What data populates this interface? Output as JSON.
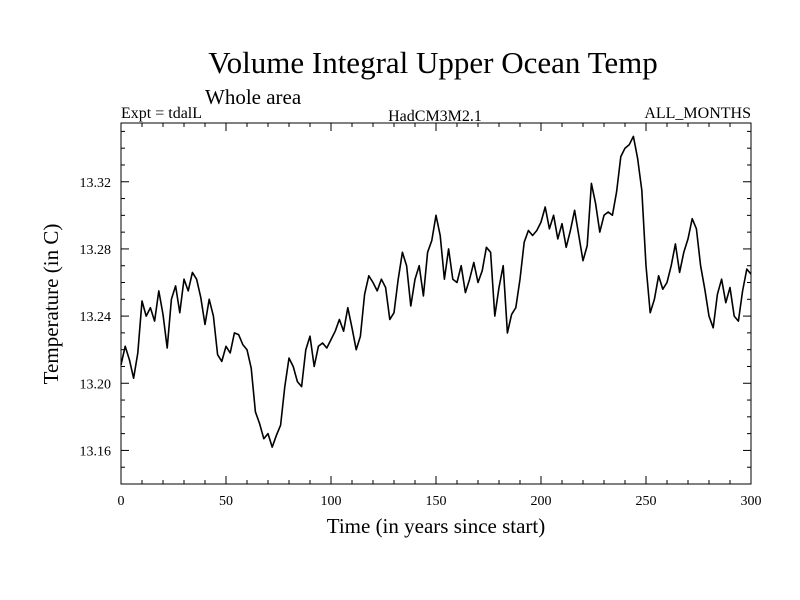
{
  "chart_data": {
    "type": "line",
    "title": "Volume Integral Upper Ocean Temp",
    "subtitle": "Whole area",
    "annotations": {
      "left": "Expt = tdalL",
      "center": "HadCM3M2.1",
      "right": "ALL_MONTHS"
    },
    "xlabel": "Time (in years since start)",
    "ylabel": "Temperature (in C)",
    "xlim": [
      0,
      300
    ],
    "ylim": [
      13.14,
      13.355
    ],
    "xticks": [
      0,
      50,
      100,
      150,
      200,
      250,
      300
    ],
    "xtick_labels": [
      "0",
      "50",
      "100",
      "150",
      "200",
      "250",
      "300"
    ],
    "yticks": [
      13.16,
      13.2,
      13.24,
      13.28,
      13.32
    ],
    "ytick_labels": [
      "13.16",
      "13.20",
      "13.24",
      "13.28",
      "13.32"
    ],
    "grid": false,
    "series": [
      {
        "name": "Volume Integral Upper Ocean Temp",
        "color": "#000000",
        "x": [
          0,
          2,
          4,
          6,
          8,
          10,
          12,
          14,
          16,
          18,
          20,
          22,
          24,
          26,
          28,
          30,
          32,
          34,
          36,
          38,
          40,
          42,
          44,
          46,
          48,
          50,
          52,
          54,
          56,
          58,
          60,
          62,
          64,
          66,
          68,
          70,
          72,
          74,
          76,
          78,
          80,
          82,
          84,
          86,
          88,
          90,
          92,
          94,
          96,
          98,
          100,
          102,
          104,
          106,
          108,
          110,
          112,
          114,
          116,
          118,
          120,
          122,
          124,
          126,
          128,
          130,
          132,
          134,
          136,
          138,
          140,
          142,
          144,
          146,
          148,
          150,
          152,
          154,
          156,
          158,
          160,
          162,
          164,
          166,
          168,
          170,
          172,
          174,
          176,
          178,
          180,
          182,
          184,
          186,
          188,
          190,
          192,
          194,
          196,
          198,
          200,
          202,
          204,
          206,
          208,
          210,
          212,
          214,
          216,
          218,
          220,
          222,
          224,
          226,
          228,
          230,
          232,
          234,
          236,
          238,
          240,
          242,
          244,
          246,
          248,
          250,
          252,
          254,
          256,
          258,
          260,
          262,
          264,
          266,
          268,
          270,
          272,
          274,
          276,
          278,
          280,
          282,
          284,
          286,
          288,
          290,
          292,
          294,
          296,
          298,
          300
        ],
        "values": [
          13.211,
          13.222,
          13.214,
          13.203,
          13.218,
          13.249,
          13.24,
          13.245,
          13.237,
          13.255,
          13.241,
          13.221,
          13.25,
          13.258,
          13.242,
          13.262,
          13.255,
          13.266,
          13.262,
          13.251,
          13.235,
          13.25,
          13.24,
          13.217,
          13.213,
          13.222,
          13.218,
          13.23,
          13.229,
          13.223,
          13.22,
          13.209,
          13.183,
          13.176,
          13.167,
          13.17,
          13.162,
          13.169,
          13.175,
          13.198,
          13.215,
          13.21,
          13.201,
          13.198,
          13.22,
          13.228,
          13.21,
          13.222,
          13.224,
          13.221,
          13.226,
          13.231,
          13.238,
          13.231,
          13.245,
          13.233,
          13.22,
          13.228,
          13.253,
          13.264,
          13.26,
          13.255,
          13.262,
          13.257,
          13.238,
          13.242,
          13.262,
          13.278,
          13.27,
          13.246,
          13.262,
          13.27,
          13.252,
          13.278,
          13.285,
          13.3,
          13.288,
          13.262,
          13.28,
          13.262,
          13.26,
          13.27,
          13.254,
          13.262,
          13.272,
          13.26,
          13.267,
          13.281,
          13.278,
          13.24,
          13.257,
          13.27,
          13.23,
          13.241,
          13.245,
          13.262,
          13.284,
          13.291,
          13.288,
          13.291,
          13.296,
          13.305,
          13.292,
          13.3,
          13.286,
          13.295,
          13.281,
          13.291,
          13.303,
          13.288,
          13.273,
          13.282,
          13.319,
          13.307,
          13.29,
          13.3,
          13.302,
          13.3,
          13.314,
          13.335,
          13.34,
          13.342,
          13.347,
          13.334,
          13.315,
          13.27,
          13.242,
          13.25,
          13.264,
          13.256,
          13.26,
          13.27,
          13.283,
          13.266,
          13.278,
          13.286,
          13.298,
          13.292,
          13.27,
          13.256,
          13.24,
          13.233,
          13.253,
          13.262,
          13.248,
          13.257,
          13.24,
          13.237,
          13.255,
          13.268,
          13.265
        ]
      }
    ]
  }
}
